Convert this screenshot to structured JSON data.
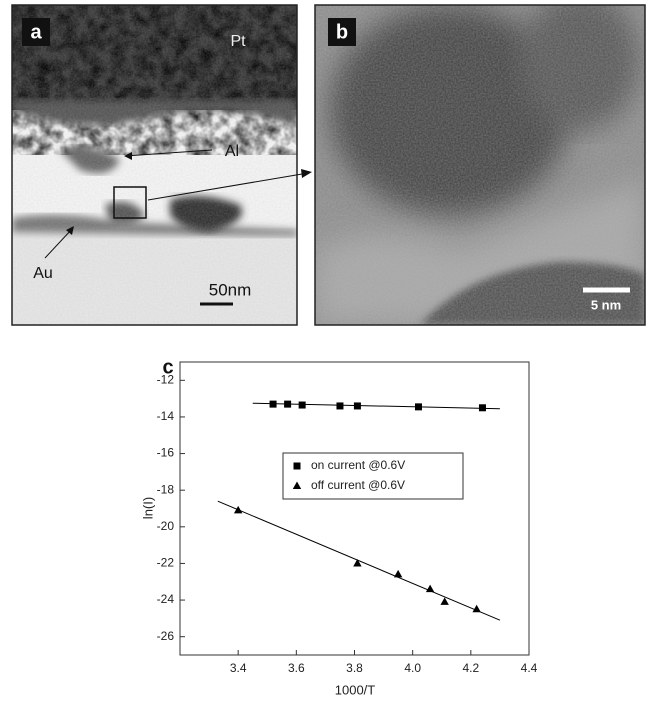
{
  "panels": {
    "a": {
      "label": "a",
      "annotations": [
        "Pt",
        "Al",
        "Au"
      ],
      "scale_bar": "50nm"
    },
    "b": {
      "label": "b",
      "scale_bar": "5 nm"
    }
  },
  "chart_data": {
    "type": "scatter",
    "panel_label": "c",
    "x_label": "1000/T",
    "y_label": "ln(I)",
    "xlim": [
      3.2,
      4.4
    ],
    "ylim": [
      -27,
      -11
    ],
    "xticks": [
      3.4,
      3.6,
      3.8,
      {
        "value": 4,
        "label": "4.0"
      },
      4.2,
      4.4
    ],
    "yticks": [
      -12,
      -14,
      -16,
      -18,
      -20,
      -22,
      -24,
      -26
    ],
    "legend": "upper right",
    "series": [
      {
        "name": "on current @0.6V",
        "color": "#000000",
        "marker": "square",
        "x": [
          3.52,
          3.57,
          3.62,
          3.75,
          3.81,
          4.02,
          4.24
        ],
        "values": [
          -13.3,
          -13.3,
          -13.35,
          -13.4,
          -13.4,
          -13.45,
          -13.5
        ],
        "fit": {
          "x": [
            3.45,
            4.3
          ],
          "values": [
            -13.25,
            -13.55
          ]
        }
      },
      {
        "name": "off current @0.6V",
        "color": "#000000",
        "marker": "triangle",
        "x": [
          3.4,
          3.81,
          3.95,
          4.06,
          4.11,
          4.22
        ],
        "values": [
          -19.1,
          -22.0,
          -22.6,
          -23.4,
          -24.1,
          -24.5
        ],
        "fit": {
          "x": [
            3.33,
            4.3
          ],
          "values": [
            -18.6,
            -25.1
          ]
        }
      }
    ]
  }
}
